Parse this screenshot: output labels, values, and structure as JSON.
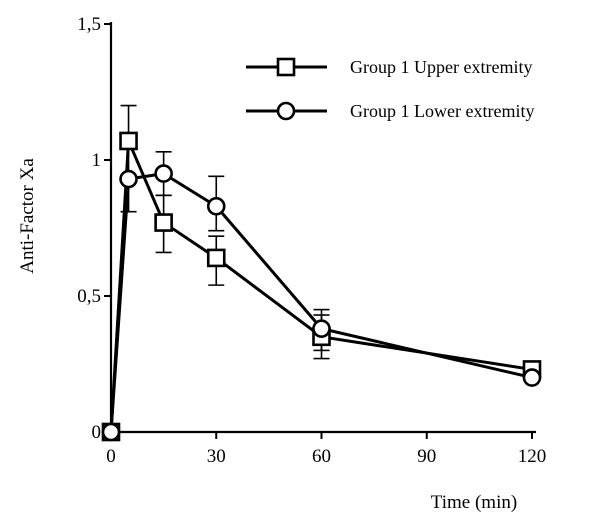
{
  "chart_data": {
    "type": "line",
    "title": "",
    "xlabel": "Time (min)",
    "ylabel": "Anti-Factor Xa",
    "x_ticks": [
      "0",
      "30",
      "60",
      "90",
      "120"
    ],
    "y_ticks": [
      "0",
      "0,5",
      "1",
      "1,5"
    ],
    "xlim": [
      0,
      120
    ],
    "ylim": [
      0,
      1.5
    ],
    "grid": false,
    "legend_position": "top-right",
    "series": [
      {
        "name": "Group 1 Upper extremity",
        "marker": "square",
        "x": [
          0,
          5,
          15,
          30,
          60,
          120
        ],
        "y": [
          0.0,
          1.07,
          0.77,
          0.64,
          0.35,
          0.23
        ],
        "err_upper": [
          0,
          1.2,
          0.87,
          0.72,
          0.43,
          0
        ],
        "err_lower": [
          0,
          0.92,
          0.66,
          0.54,
          0.27,
          0
        ]
      },
      {
        "name": "Group 1 Lower extremity",
        "marker": "circle",
        "x": [
          0,
          5,
          15,
          30,
          60,
          120
        ],
        "y": [
          0.0,
          0.93,
          0.95,
          0.83,
          0.38,
          0.2
        ],
        "err_upper": [
          0,
          0,
          1.03,
          0.94,
          0.45,
          0
        ],
        "err_lower": [
          0,
          0.81,
          0.87,
          0.74,
          0.3,
          0
        ]
      }
    ]
  }
}
